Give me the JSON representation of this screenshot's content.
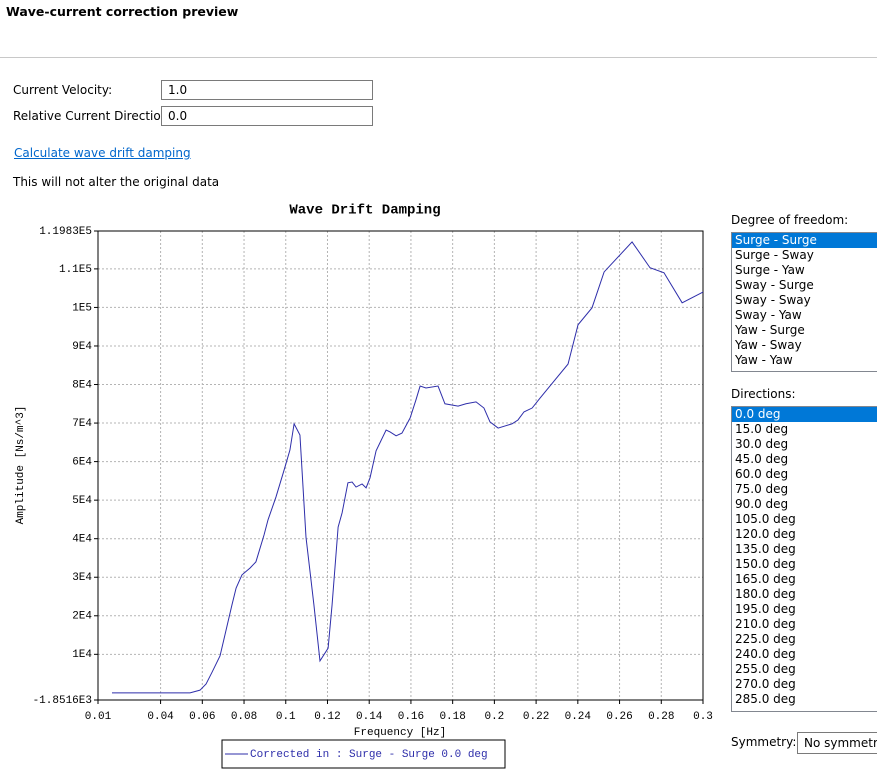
{
  "header": {
    "title": "Wave-current correction preview"
  },
  "form": {
    "fields": [
      {
        "label": "Current Velocity:",
        "value": "1.0"
      },
      {
        "label": "Relative Current Direction:",
        "value": "0.0"
      }
    ],
    "link": "Calculate wave drift damping",
    "note": "This will not alter the original data"
  },
  "chart_data": {
    "type": "line",
    "title": "Wave Drift Damping",
    "xlabel": "Frequency [Hz]",
    "ylabel": "Amplitude [Ns/m^3]",
    "xlim": [
      0.01,
      0.3
    ],
    "xticks": [
      0.01,
      0.04,
      0.06,
      0.08,
      0.1,
      0.12,
      0.14,
      0.16,
      0.18,
      0.2,
      0.22,
      0.24,
      0.26,
      0.28,
      0.3
    ],
    "ylim": [
      -1851.6,
      119830
    ],
    "yticks": [
      {
        "value": -1851.6,
        "label": "-1.8516E3"
      },
      {
        "value": 10000,
        "label": "1E4"
      },
      {
        "value": 20000,
        "label": "2E4"
      },
      {
        "value": 30000,
        "label": "3E4"
      },
      {
        "value": 40000,
        "label": "4E4"
      },
      {
        "value": 50000,
        "label": "5E4"
      },
      {
        "value": 60000,
        "label": "6E4"
      },
      {
        "value": 70000,
        "label": "7E4"
      },
      {
        "value": 80000,
        "label": "8E4"
      },
      {
        "value": 90000,
        "label": "9E4"
      },
      {
        "value": 100000,
        "label": "1E5"
      },
      {
        "value": 110000,
        "label": "1.1E5"
      },
      {
        "value": 119830,
        "label": "1.1983E5"
      }
    ],
    "grid": true,
    "legend": "bottom",
    "x": [
      0.0167,
      0.0541,
      0.0589,
      0.0618,
      0.0647,
      0.0685,
      0.0714,
      0.0742,
      0.0762,
      0.079,
      0.0829,
      0.0857,
      0.0896,
      0.0915,
      0.0953,
      0.0992,
      0.102,
      0.104,
      0.1068,
      0.1097,
      0.1135,
      0.1164,
      0.1203,
      0.1222,
      0.1251,
      0.127,
      0.1298,
      0.1318,
      0.1337,
      0.1366,
      0.1385,
      0.1404,
      0.1433,
      0.1481,
      0.15,
      0.1529,
      0.1557,
      0.1596,
      0.1624,
      0.1644,
      0.1672,
      0.173,
      0.1763,
      0.1826,
      0.1864,
      0.1912,
      0.195,
      0.1979,
      0.2018,
      0.2085,
      0.2113,
      0.2142,
      0.2181,
      0.2219,
      0.2353,
      0.2401,
      0.2468,
      0.2526,
      0.266,
      0.2746,
      0.2813,
      0.29,
      0.3
    ],
    "series": [
      {
        "name": "Corrected in : Surge - Surge 0.0 deg",
        "color": "#2e2eaa",
        "values": [
          0,
          0,
          700,
          2300,
          5400,
          9600,
          16300,
          22800,
          27200,
          30600,
          32400,
          34000,
          41000,
          44900,
          50800,
          57800,
          63000,
          69800,
          66900,
          40400,
          22800,
          8300,
          11600,
          22800,
          43000,
          46700,
          54500,
          54700,
          53400,
          54200,
          53200,
          55800,
          62800,
          68200,
          67700,
          66700,
          67400,
          71300,
          76000,
          79600,
          79100,
          79600,
          75000,
          74400,
          75000,
          75500,
          73900,
          70300,
          68700,
          69800,
          70800,
          72900,
          73900,
          76500,
          85300,
          95500,
          99900,
          109200,
          117000,
          110300,
          109000,
          101200,
          104000
        ]
      }
    ]
  },
  "side_panel": {
    "dof_label": "Degree of freedom:",
    "dof_options": [
      "Surge - Surge",
      "Surge - Sway",
      "Surge - Yaw",
      "Sway - Surge",
      "Sway - Sway",
      "Sway - Yaw",
      "Yaw - Surge",
      "Yaw - Sway",
      "Yaw - Yaw"
    ],
    "dof_selected": 0,
    "directions_label": "Directions:",
    "directions": [
      "0.0 deg",
      "15.0 deg",
      "30.0 deg",
      "45.0 deg",
      "60.0 deg",
      "75.0 deg",
      "90.0 deg",
      "105.0 deg",
      "120.0 deg",
      "135.0 deg",
      "150.0 deg",
      "165.0 deg",
      "180.0 deg",
      "195.0 deg",
      "210.0 deg",
      "225.0 deg",
      "240.0 deg",
      "255.0 deg",
      "270.0 deg",
      "285.0 deg"
    ],
    "directions_selected": 0,
    "symmetry_label": "Symmetry:",
    "symmetry_value": "No symmetry"
  }
}
